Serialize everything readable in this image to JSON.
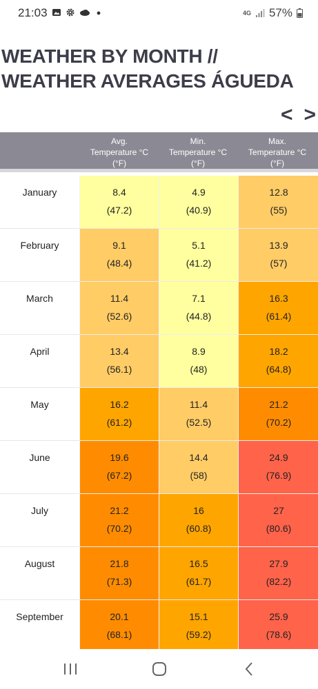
{
  "status_bar": {
    "time": "21:03",
    "network": "4G",
    "battery": "57%",
    "icons": [
      "image-icon",
      "gear-icon",
      "cloud-icon",
      "dot-icon",
      "signal-icon",
      "battery-icon"
    ]
  },
  "page": {
    "title": "WEATHER BY MONTH // WEATHER AVERAGES ÁGUEDA",
    "prev_arrow": "<",
    "next_arrow": ">"
  },
  "table": {
    "headers": [
      {
        "line1": "Avg.",
        "line2": "Temperature °C",
        "line3": "(°F)"
      },
      {
        "line1": "Min.",
        "line2": "Temperature °C",
        "line3": "(°F)"
      },
      {
        "line1": "Max.",
        "line2": "Temperature °C",
        "line3": "(°F)"
      }
    ],
    "rows": [
      {
        "month": "January",
        "avg": [
          "8.4",
          "(47.2)"
        ],
        "min": [
          "4.9",
          "(40.9)"
        ],
        "max": [
          "12.8",
          "(55)"
        ]
      },
      {
        "month": "February",
        "avg": [
          "9.1",
          "(48.4)"
        ],
        "min": [
          "5.1",
          "(41.2)"
        ],
        "max": [
          "13.9",
          "(57)"
        ]
      },
      {
        "month": "March",
        "avg": [
          "11.4",
          "(52.6)"
        ],
        "min": [
          "7.1",
          "(44.8)"
        ],
        "max": [
          "16.3",
          "(61.4)"
        ]
      },
      {
        "month": "April",
        "avg": [
          "13.4",
          "(56.1)"
        ],
        "min": [
          "8.9",
          "(48)"
        ],
        "max": [
          "18.2",
          "(64.8)"
        ]
      },
      {
        "month": "May",
        "avg": [
          "16.2",
          "(61.2)"
        ],
        "min": [
          "11.4",
          "(52.5)"
        ],
        "max": [
          "21.2",
          "(70.2)"
        ]
      },
      {
        "month": "June",
        "avg": [
          "19.6",
          "(67.2)"
        ],
        "min": [
          "14.4",
          "(58)"
        ],
        "max": [
          "24.9",
          "(76.9)"
        ]
      },
      {
        "month": "July",
        "avg": [
          "21.2",
          "(70.2)"
        ],
        "min": [
          "16",
          "(60.8)"
        ],
        "max": [
          "27",
          "(80.6)"
        ]
      },
      {
        "month": "August",
        "avg": [
          "21.8",
          "(71.3)"
        ],
        "min": [
          "16.5",
          "(61.7)"
        ],
        "max": [
          "27.9",
          "(82.2)"
        ]
      },
      {
        "month": "September",
        "avg": [
          "20.1",
          "(68.1)"
        ],
        "min": [
          "15.1",
          "(59.2)"
        ],
        "max": [
          "25.9",
          "(78.6)"
        ]
      }
    ],
    "colors": {
      "header_bg": "#8b8a94",
      "pale_yellow": "#ffff9f",
      "light_orange": "#ffcc66",
      "orange": "#ffa500",
      "dark_orange": "#ff8c00",
      "red": "#ff634a"
    }
  },
  "nav_bar": {
    "icons": [
      "recent-apps-icon",
      "home-icon",
      "back-icon"
    ]
  }
}
